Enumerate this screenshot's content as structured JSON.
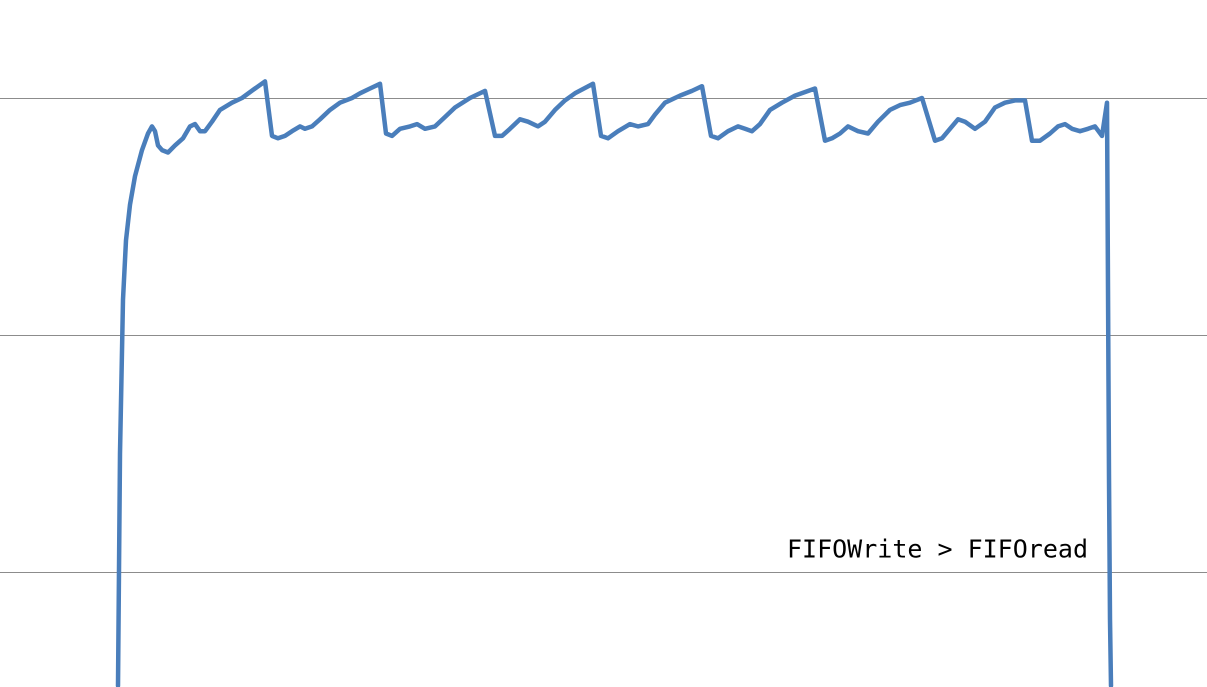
{
  "chart_data": {
    "type": "line",
    "title": "",
    "xlabel": "",
    "ylabel": "",
    "xlim": [
      0,
      1207
    ],
    "ylim": [
      -0.5,
      2.4
    ],
    "grid": {
      "horizontal": true,
      "vertical": false
    },
    "gridlines_y": [
      0,
      1,
      2
    ],
    "annotation": {
      "text": "FIFOWrite > FIFOread",
      "x": 1088,
      "y": 0.1
    },
    "colors": {
      "series": "#4a7ebb",
      "grid": "#8c8c8c",
      "background": "#ffffff"
    },
    "series": [
      {
        "color": "#4a7ebb",
        "points": [
          [
            118,
            -0.48
          ],
          [
            120,
            0.5
          ],
          [
            123,
            1.15
          ],
          [
            126,
            1.4
          ],
          [
            130,
            1.55
          ],
          [
            135,
            1.67
          ],
          [
            142,
            1.78
          ],
          [
            148,
            1.85
          ],
          [
            152,
            1.88
          ],
          [
            155,
            1.86
          ],
          [
            158,
            1.8
          ],
          [
            162,
            1.78
          ],
          [
            168,
            1.77
          ],
          [
            175,
            1.8
          ],
          [
            183,
            1.83
          ],
          [
            190,
            1.88
          ],
          [
            195,
            1.89
          ],
          [
            200,
            1.86
          ],
          [
            205,
            1.86
          ],
          [
            212,
            1.9
          ],
          [
            220,
            1.95
          ],
          [
            232,
            1.98
          ],
          [
            242,
            2.0
          ],
          [
            255,
            2.04
          ],
          [
            265,
            2.07
          ],
          [
            272,
            1.84
          ],
          [
            278,
            1.83
          ],
          [
            285,
            1.84
          ],
          [
            292,
            1.86
          ],
          [
            300,
            1.88
          ],
          [
            305,
            1.87
          ],
          [
            312,
            1.88
          ],
          [
            320,
            1.91
          ],
          [
            330,
            1.95
          ],
          [
            340,
            1.98
          ],
          [
            352,
            2.0
          ],
          [
            360,
            2.02
          ],
          [
            370,
            2.04
          ],
          [
            380,
            2.06
          ],
          [
            386,
            1.85
          ],
          [
            392,
            1.84
          ],
          [
            400,
            1.87
          ],
          [
            410,
            1.88
          ],
          [
            417,
            1.89
          ],
          [
            425,
            1.87
          ],
          [
            435,
            1.88
          ],
          [
            445,
            1.92
          ],
          [
            455,
            1.96
          ],
          [
            470,
            2.0
          ],
          [
            485,
            2.03
          ],
          [
            495,
            1.84
          ],
          [
            502,
            1.84
          ],
          [
            510,
            1.87
          ],
          [
            520,
            1.91
          ],
          [
            528,
            1.9
          ],
          [
            538,
            1.88
          ],
          [
            545,
            1.9
          ],
          [
            555,
            1.95
          ],
          [
            565,
            1.99
          ],
          [
            575,
            2.02
          ],
          [
            593,
            2.06
          ],
          [
            601,
            1.84
          ],
          [
            608,
            1.83
          ],
          [
            618,
            1.86
          ],
          [
            630,
            1.89
          ],
          [
            638,
            1.88
          ],
          [
            648,
            1.89
          ],
          [
            655,
            1.93
          ],
          [
            665,
            1.98
          ],
          [
            680,
            2.01
          ],
          [
            692,
            2.03
          ],
          [
            702,
            2.05
          ],
          [
            711,
            1.84
          ],
          [
            718,
            1.83
          ],
          [
            728,
            1.86
          ],
          [
            738,
            1.88
          ],
          [
            745,
            1.87
          ],
          [
            752,
            1.86
          ],
          [
            760,
            1.89
          ],
          [
            770,
            1.95
          ],
          [
            782,
            1.98
          ],
          [
            795,
            2.01
          ],
          [
            815,
            2.04
          ],
          [
            825,
            1.82
          ],
          [
            832,
            1.83
          ],
          [
            840,
            1.85
          ],
          [
            848,
            1.88
          ],
          [
            858,
            1.86
          ],
          [
            868,
            1.85
          ],
          [
            878,
            1.9
          ],
          [
            890,
            1.95
          ],
          [
            900,
            1.97
          ],
          [
            910,
            1.98
          ],
          [
            922,
            2.0
          ],
          [
            935,
            1.82
          ],
          [
            942,
            1.83
          ],
          [
            950,
            1.87
          ],
          [
            958,
            1.91
          ],
          [
            965,
            1.9
          ],
          [
            975,
            1.87
          ],
          [
            985,
            1.9
          ],
          [
            995,
            1.96
          ],
          [
            1005,
            1.98
          ],
          [
            1015,
            1.99
          ],
          [
            1025,
            1.99
          ],
          [
            1032,
            1.82
          ],
          [
            1040,
            1.82
          ],
          [
            1050,
            1.85
          ],
          [
            1058,
            1.88
          ],
          [
            1065,
            1.89
          ],
          [
            1072,
            1.87
          ],
          [
            1080,
            1.86
          ],
          [
            1088,
            1.87
          ],
          [
            1095,
            1.88
          ],
          [
            1102,
            1.84
          ],
          [
            1107,
            1.98
          ],
          [
            1108,
            1.2
          ],
          [
            1109,
            0.4
          ],
          [
            1110,
            -0.2
          ],
          [
            1111,
            -0.48
          ]
        ]
      }
    ]
  }
}
